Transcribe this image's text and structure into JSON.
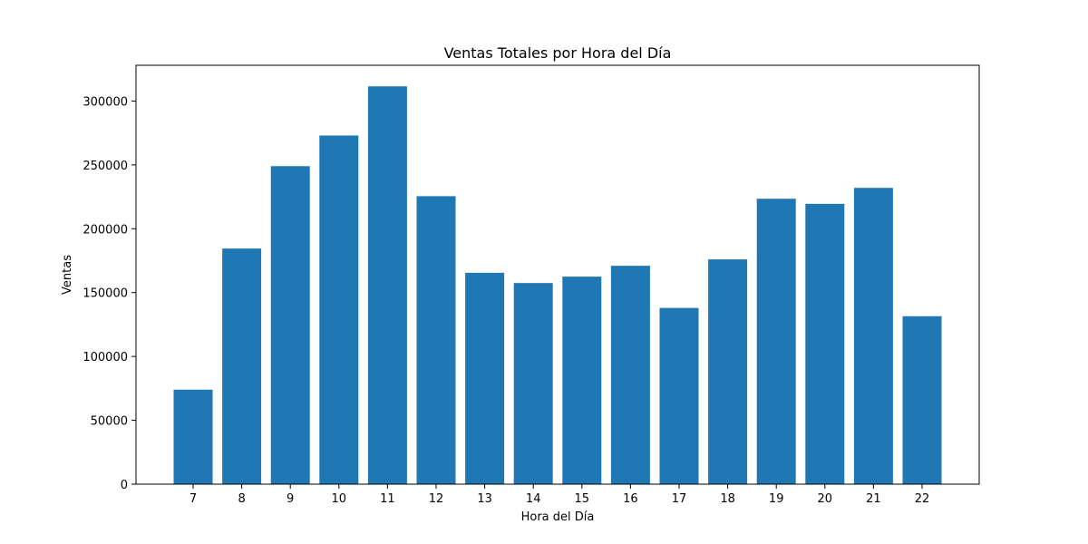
{
  "chart_data": {
    "type": "bar",
    "title": "Ventas Totales por Hora del Día",
    "xlabel": "Hora del Día",
    "ylabel": "Ventas",
    "categories": [
      "7",
      "8",
      "9",
      "10",
      "11",
      "12",
      "13",
      "14",
      "15",
      "16",
      "17",
      "18",
      "19",
      "20",
      "21",
      "22"
    ],
    "values": [
      74000,
      184500,
      249000,
      273000,
      311500,
      225500,
      165500,
      157500,
      162500,
      171000,
      138000,
      176000,
      223500,
      219500,
      232000,
      131500
    ],
    "ylim": [
      0,
      328000
    ],
    "yticks": [
      0,
      50000,
      100000,
      150000,
      200000,
      250000,
      300000
    ],
    "ytick_labels": [
      "0",
      "50000",
      "100000",
      "150000",
      "200000",
      "250000",
      "300000"
    ],
    "grid": false,
    "legend": false,
    "colors": {
      "bar": "#1f77b4",
      "axis": "#000000",
      "background": "#ffffff"
    }
  }
}
